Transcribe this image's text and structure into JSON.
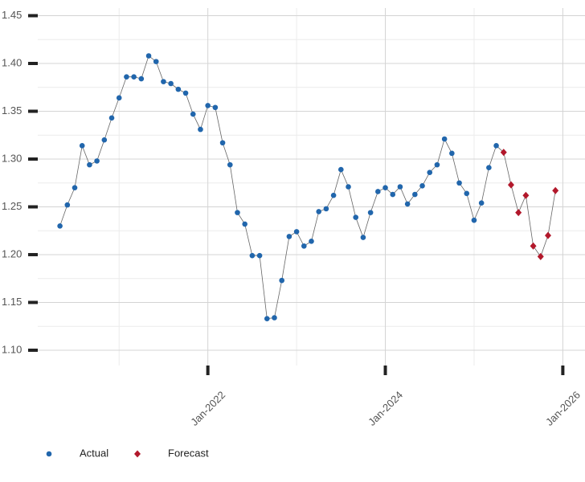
{
  "chart_data": {
    "type": "line",
    "x": [
      "2020-05",
      "2020-06",
      "2020-07",
      "2020-08",
      "2020-09",
      "2020-10",
      "2020-11",
      "2020-12",
      "2021-01",
      "2021-02",
      "2021-03",
      "2021-04",
      "2021-05",
      "2021-06",
      "2021-07",
      "2021-08",
      "2021-09",
      "2021-10",
      "2021-11",
      "2021-12",
      "2022-01",
      "2022-02",
      "2022-03",
      "2022-04",
      "2022-05",
      "2022-06",
      "2022-07",
      "2022-08",
      "2022-09",
      "2022-10",
      "2022-11",
      "2022-12",
      "2023-01",
      "2023-02",
      "2023-03",
      "2023-04",
      "2023-05",
      "2023-06",
      "2023-07",
      "2023-08",
      "2023-09",
      "2023-10",
      "2023-11",
      "2023-12",
      "2024-01",
      "2024-02",
      "2024-03",
      "2024-04",
      "2024-05",
      "2024-06",
      "2024-07",
      "2024-08",
      "2024-09",
      "2024-10",
      "2024-11",
      "2024-12",
      "2025-01",
      "2025-02",
      "2025-03",
      "2025-04",
      "2025-05",
      "2025-06",
      "2025-07",
      "2025-08",
      "2025-09",
      "2025-10",
      "2025-11",
      "2025-12"
    ],
    "series": [
      {
        "name": "Actual",
        "color": "#2166ac",
        "marker": "circle",
        "values": [
          1.23,
          1.252,
          1.27,
          1.314,
          1.294,
          1.298,
          1.32,
          1.343,
          1.364,
          1.386,
          1.386,
          1.384,
          1.408,
          1.402,
          1.381,
          1.379,
          1.373,
          1.369,
          1.347,
          1.331,
          1.356,
          1.354,
          1.317,
          1.294,
          1.244,
          1.232,
          1.199,
          1.199,
          1.133,
          1.134,
          1.173,
          1.219,
          1.224,
          1.209,
          1.214,
          1.245,
          1.248,
          1.262,
          1.289,
          1.271,
          1.239,
          1.218,
          1.244,
          1.266,
          1.27,
          1.263,
          1.271,
          1.253,
          1.263,
          1.272,
          1.286,
          1.294,
          1.321,
          1.306,
          1.275,
          1.264,
          1.236,
          1.254,
          1.291,
          1.314,
          null,
          null,
          null,
          null,
          null,
          null,
          null,
          null
        ]
      },
      {
        "name": "Forecast",
        "color": "#b2182b",
        "marker": "diamond",
        "values": [
          null,
          null,
          null,
          null,
          null,
          null,
          null,
          null,
          null,
          null,
          null,
          null,
          null,
          null,
          null,
          null,
          null,
          null,
          null,
          null,
          null,
          null,
          null,
          null,
          null,
          null,
          null,
          null,
          null,
          null,
          null,
          null,
          null,
          null,
          null,
          null,
          null,
          null,
          null,
          null,
          null,
          null,
          null,
          null,
          null,
          null,
          null,
          null,
          null,
          null,
          null,
          null,
          null,
          null,
          null,
          null,
          null,
          null,
          null,
          null,
          1.307,
          1.273,
          1.244,
          1.262,
          1.209,
          1.198,
          1.22,
          1.267
        ]
      }
    ],
    "xlim": [
      "2020-02",
      "2026-04"
    ],
    "xticks": [
      {
        "value": "2022-01",
        "label": "Jan-2022"
      },
      {
        "value": "2024-01",
        "label": "Jan-2024"
      },
      {
        "value": "2026-01",
        "label": "Jan-2026"
      }
    ],
    "ylim": [
      1.084,
      1.458
    ],
    "yticks": [
      {
        "value": 1.1,
        "label": "1.10"
      },
      1.15,
      {
        "value": 1.2,
        "label": "1.20"
      },
      1.25,
      {
        "value": 1.3,
        "label": "1.30"
      },
      1.35,
      {
        "value": 1.4,
        "label": "1.40"
      },
      1.45
    ],
    "grid": true,
    "legend": "bottom-left"
  }
}
